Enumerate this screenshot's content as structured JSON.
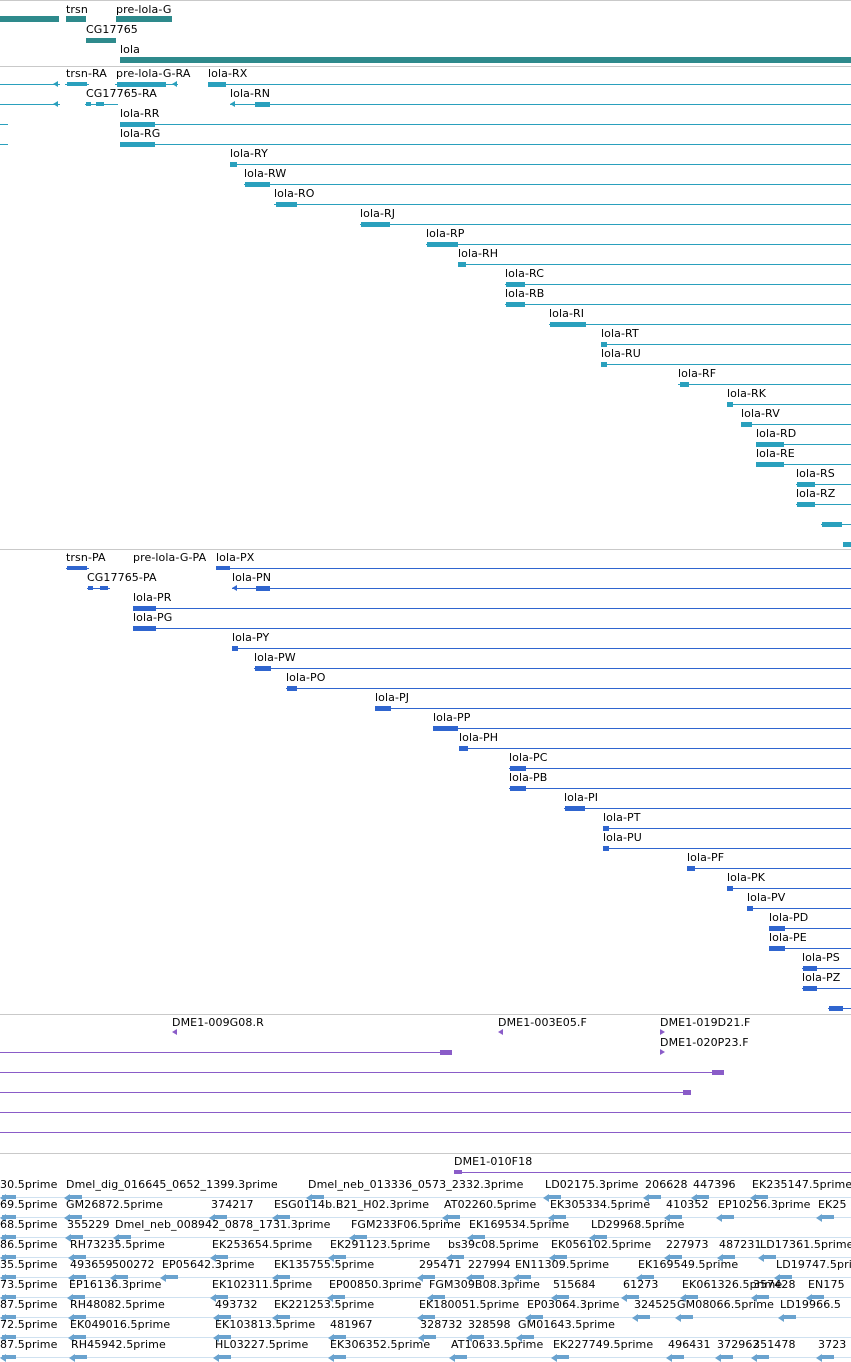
{
  "colors": {
    "gene": "#2e8a8c",
    "transcript": "#2aa0bd",
    "protein": "#2f65cf",
    "clone": "#8a5cc8",
    "est": "#6aa3cf",
    "separator": "#c9c9c9"
  },
  "genes": [
    "trsn",
    "pre-lola-G",
    "CG17765",
    "lola"
  ],
  "transcripts": [
    "trsn-RA",
    "pre-lola-G-RA",
    "lola-RX",
    "CG17765-RA",
    "lola-RN",
    "lola-RR",
    "lola-RG",
    "lola-RY",
    "lola-RW",
    "lola-RO",
    "lola-RJ",
    "lola-RP",
    "lola-RH",
    "lola-RC",
    "lola-RB",
    "lola-RI",
    "lola-RT",
    "lola-RU",
    "lola-RF",
    "lola-RK",
    "lola-RV",
    "lola-RD",
    "lola-RE",
    "lola-RS",
    "lola-RZ"
  ],
  "proteins": [
    "trsn-PA",
    "pre-lola-G-PA",
    "lola-PX",
    "CG17765-PA",
    "lola-PN",
    "lola-PR",
    "lola-PG",
    "lola-PY",
    "lola-PW",
    "lola-PO",
    "lola-PJ",
    "lola-PP",
    "lola-PH",
    "lola-PC",
    "lola-PB",
    "lola-PI",
    "lola-PT",
    "lola-PU",
    "lola-PF",
    "lola-PK",
    "lola-PV",
    "lola-PD",
    "lola-PE",
    "lola-PS",
    "lola-PZ"
  ],
  "clones": [
    "DME1-009G08.R",
    "DME1-003E05.F",
    "DME1-019D21.F",
    "DME1-020P23.F",
    "DME1-010F18"
  ],
  "est_rows": [
    [
      "30.5prime",
      "Dmel_dig_016645_0652_1399.3prime",
      "Dmel_neb_013336_0573_2332.3prime",
      "LD02175.3prime",
      "206628",
      "447396",
      "EK235147.5prime"
    ],
    [
      "69.5prime",
      "GM26872.5prime",
      "374217",
      "ESG0114b.B21_H02.3prime",
      "AT02260.5prime",
      "EK305334.5prime",
      "410352",
      "EP10256.3prime",
      "EK25"
    ],
    [
      "68.5prime",
      "355229",
      "Dmel_neb_008942_0878_1731.3prime",
      "FGM233F06.5prime",
      "EK169534.5prime",
      "LD29968.5prime"
    ],
    [
      "86.5prime",
      "RH73235.5prime",
      "EK253654.5prime",
      "EK291123.5prime",
      "bs39c08.5prime",
      "EK056102.5prime",
      "227973",
      "487231",
      "LD17361.5prime"
    ],
    [
      "35.5prime",
      "493659",
      "500272",
      "EP05642.3prime",
      "EK135755.5prime",
      "295471",
      "227994",
      "EN11309.5prime",
      "EK169549.5prime",
      "LD19747.5prime"
    ],
    [
      "73.5prime",
      "EP16136.3prime",
      "EK102311.5prime",
      "EP00850.3prime",
      "FGM309B08.3prime",
      "515684",
      "61273",
      "EK061326.5prime",
      "357428",
      "EN175"
    ],
    [
      "87.5prime",
      "RH48082.5prime",
      "493732",
      "EK221253.5prime",
      "EK180051.5prime",
      "EP03064.3prime",
      "324525",
      "GM08066.5prime",
      "LD19966.5"
    ],
    [
      "72.5prime",
      "EK049016.5prime",
      "EK103813.5prime",
      "481967",
      "328732",
      "328598",
      "GM01643.5prime"
    ],
    [
      "87.5prime",
      "RH45942.5prime",
      "HL03227.5prime",
      "EK306352.5prime",
      "AT10633.5prime",
      "EK227749.5prime",
      "496431",
      "372962",
      "351478",
      "3723"
    ]
  ]
}
